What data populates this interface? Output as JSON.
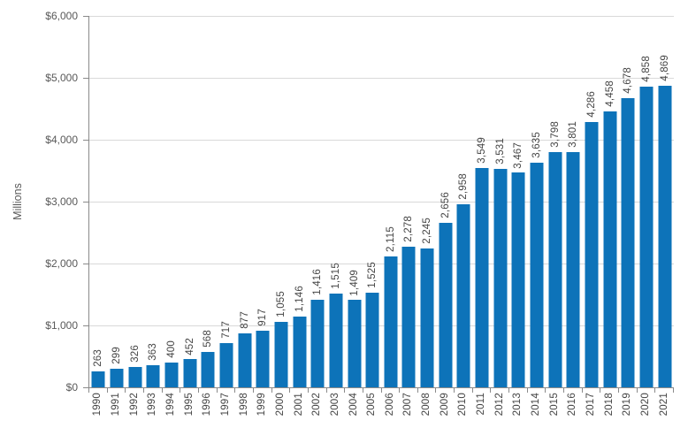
{
  "chart_data": {
    "type": "bar",
    "title": "",
    "xlabel": "",
    "ylabel": "Millions",
    "ylim": [
      0,
      6000
    ],
    "grid": true,
    "legend": false,
    "categories": [
      "1990",
      "1991",
      "1992",
      "1993",
      "1994",
      "1995",
      "1996",
      "1997",
      "1998",
      "1999",
      "2000",
      "2001",
      "2002",
      "2003",
      "2004",
      "2005",
      "2006",
      "2007",
      "2008",
      "2009",
      "2010",
      "2011",
      "2012",
      "2013",
      "2014",
      "2015",
      "2016",
      "2017",
      "2018",
      "2019",
      "2020",
      "2021"
    ],
    "values": [
      263,
      299,
      326,
      363,
      400,
      452,
      568,
      717,
      877,
      917,
      1055,
      1146,
      1416,
      1515,
      1409,
      1525,
      2115,
      2278,
      2245,
      2656,
      2958,
      3549,
      3531,
      3467,
      3635,
      3798,
      3801,
      4286,
      4458,
      4678,
      4858,
      4869
    ],
    "value_labels": [
      "263",
      "299",
      "326",
      "363",
      "400",
      "452",
      "568",
      "717",
      "877",
      "917",
      "1,055",
      "1,146",
      "1,416",
      "1,515",
      "1,409",
      "1,525",
      "2,115",
      "2,278",
      "2,245",
      "2,656",
      "2,958",
      "3,549",
      "3,531",
      "3,467",
      "3,635",
      "3,798",
      "3,801",
      "4,286",
      "4,458",
      "4,678",
      "4,858",
      "4,869"
    ],
    "y_tick_values": [
      0,
      1000,
      2000,
      3000,
      4000,
      5000,
      6000
    ],
    "y_tick_labels": [
      "$0",
      "$1,000",
      "$2,000",
      "$3,000",
      "$4,000",
      "$5,000",
      "$6,000"
    ],
    "colors": {
      "bar": "#0d73b9",
      "grid": "#d9d9d9",
      "axis": "#8a8a8a",
      "tick_label": "#595959",
      "value_label": "#454545",
      "background": "#ffffff"
    }
  }
}
